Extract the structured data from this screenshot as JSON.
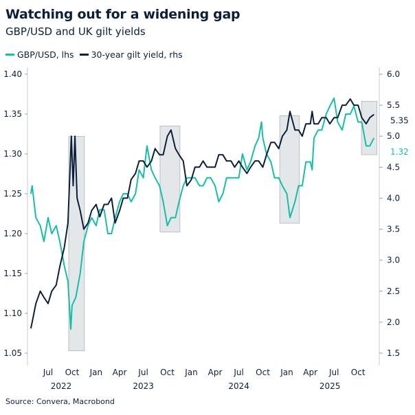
{
  "title": "Watching out for a widening gap",
  "subtitle": "GBP/USD and UK gilt yields",
  "source": "Source: Convera, Macrobond",
  "chart_data": {
    "type": "line",
    "title": "Watching out for a widening gap",
    "subtitle": "GBP/USD and UK gilt yields",
    "legend_placement": "top-left",
    "grid": false,
    "x_axis": {
      "range": [
        "2022-04-20",
        "2025-12-12"
      ],
      "tick_labels": [
        {
          "label": "Jul",
          "date": "2022-07-01"
        },
        {
          "label": "Oct",
          "date": "2022-10-01"
        },
        {
          "label": "Jan",
          "date": "2023-01-01"
        },
        {
          "label": "Apr",
          "date": "2023-04-01"
        },
        {
          "label": "Jul",
          "date": "2023-07-01"
        },
        {
          "label": "Oct",
          "date": "2023-10-01"
        },
        {
          "label": "Jan",
          "date": "2024-01-01"
        },
        {
          "label": "Apr",
          "date": "2024-04-01"
        },
        {
          "label": "Jul",
          "date": "2024-07-01"
        },
        {
          "label": "Oct",
          "date": "2024-10-01"
        },
        {
          "label": "Jan",
          "date": "2025-01-01"
        },
        {
          "label": "Apr",
          "date": "2025-04-01"
        },
        {
          "label": "Jul",
          "date": "2025-07-01"
        },
        {
          "label": "Oct",
          "date": "2025-10-01"
        }
      ],
      "year_labels": [
        {
          "label": "2022",
          "date": "2022-08-20"
        },
        {
          "label": "2023",
          "date": "2023-07-01"
        },
        {
          "label": "2024",
          "date": "2024-07-01"
        },
        {
          "label": "2025",
          "date": "2025-06-15"
        }
      ]
    },
    "y_left": {
      "range": [
        1.05,
        1.4
      ],
      "ticks": [
        "1.05",
        "1.10",
        "1.15",
        "1.20",
        "1.25",
        "1.30",
        "1.35",
        "1.40"
      ]
    },
    "y_right": {
      "range": [
        1.5,
        6.0
      ],
      "ticks": [
        "1.5",
        "2.0",
        "2.5",
        "3.0",
        "3.5",
        "4.0",
        "4.5",
        "5.0",
        "5.5",
        "6.0"
      ]
    },
    "series": [
      {
        "name": "GBP/USD, lhs",
        "axis": "left",
        "color": "#13bfa6",
        "end_label": "1.32",
        "points": [
          [
            "2022-04-26",
            1.25
          ],
          [
            "2022-05-01",
            1.26
          ],
          [
            "2022-05-15",
            1.22
          ],
          [
            "2022-06-01",
            1.21
          ],
          [
            "2022-06-15",
            1.19
          ],
          [
            "2022-07-01",
            1.22
          ],
          [
            "2022-07-15",
            1.2
          ],
          [
            "2022-08-01",
            1.21
          ],
          [
            "2022-08-15",
            1.19
          ],
          [
            "2022-09-01",
            1.16
          ],
          [
            "2022-09-15",
            1.14
          ],
          [
            "2022-09-26",
            1.08
          ],
          [
            "2022-10-01",
            1.11
          ],
          [
            "2022-10-15",
            1.12
          ],
          [
            "2022-11-01",
            1.15
          ],
          [
            "2022-11-15",
            1.19
          ],
          [
            "2022-12-01",
            1.21
          ],
          [
            "2022-12-15",
            1.22
          ],
          [
            "2023-01-01",
            1.21
          ],
          [
            "2023-01-15",
            1.23
          ],
          [
            "2023-02-01",
            1.23
          ],
          [
            "2023-02-15",
            1.2
          ],
          [
            "2023-03-01",
            1.2
          ],
          [
            "2023-03-15",
            1.22
          ],
          [
            "2023-04-01",
            1.24
          ],
          [
            "2023-04-15",
            1.25
          ],
          [
            "2023-05-01",
            1.25
          ],
          [
            "2023-05-15",
            1.24
          ],
          [
            "2023-06-01",
            1.25
          ],
          [
            "2023-06-15",
            1.28
          ],
          [
            "2023-07-01",
            1.27
          ],
          [
            "2023-07-15",
            1.31
          ],
          [
            "2023-08-01",
            1.28
          ],
          [
            "2023-08-15",
            1.27
          ],
          [
            "2023-09-01",
            1.26
          ],
          [
            "2023-09-15",
            1.24
          ],
          [
            "2023-10-01",
            1.21
          ],
          [
            "2023-10-15",
            1.22
          ],
          [
            "2023-11-01",
            1.22
          ],
          [
            "2023-11-15",
            1.24
          ],
          [
            "2023-12-01",
            1.26
          ],
          [
            "2023-12-15",
            1.27
          ],
          [
            "2024-01-01",
            1.27
          ],
          [
            "2024-01-15",
            1.27
          ],
          [
            "2024-02-01",
            1.26
          ],
          [
            "2024-02-15",
            1.26
          ],
          [
            "2024-03-01",
            1.27
          ],
          [
            "2024-03-15",
            1.27
          ],
          [
            "2024-04-01",
            1.26
          ],
          [
            "2024-04-15",
            1.24
          ],
          [
            "2024-05-01",
            1.25
          ],
          [
            "2024-05-15",
            1.27
          ],
          [
            "2024-06-01",
            1.27
          ],
          [
            "2024-06-15",
            1.27
          ],
          [
            "2024-07-01",
            1.27
          ],
          [
            "2024-07-15",
            1.3
          ],
          [
            "2024-08-01",
            1.28
          ],
          [
            "2024-08-15",
            1.29
          ],
          [
            "2024-09-01",
            1.31
          ],
          [
            "2024-09-15",
            1.32
          ],
          [
            "2024-09-26",
            1.34
          ],
          [
            "2024-10-01",
            1.32
          ],
          [
            "2024-10-15",
            1.3
          ],
          [
            "2024-11-01",
            1.29
          ],
          [
            "2024-11-15",
            1.27
          ],
          [
            "2024-12-01",
            1.27
          ],
          [
            "2024-12-15",
            1.26
          ],
          [
            "2025-01-01",
            1.25
          ],
          [
            "2025-01-13",
            1.22
          ],
          [
            "2025-02-01",
            1.24
          ],
          [
            "2025-02-15",
            1.26
          ],
          [
            "2025-03-01",
            1.26
          ],
          [
            "2025-03-15",
            1.29
          ],
          [
            "2025-04-01",
            1.29
          ],
          [
            "2025-04-08",
            1.28
          ],
          [
            "2025-04-15",
            1.32
          ],
          [
            "2025-05-01",
            1.33
          ],
          [
            "2025-05-15",
            1.33
          ],
          [
            "2025-06-01",
            1.35
          ],
          [
            "2025-06-15",
            1.36
          ],
          [
            "2025-07-01",
            1.37
          ],
          [
            "2025-07-15",
            1.34
          ],
          [
            "2025-08-01",
            1.33
          ],
          [
            "2025-08-15",
            1.35
          ],
          [
            "2025-09-01",
            1.35
          ],
          [
            "2025-09-15",
            1.36
          ],
          [
            "2025-10-01",
            1.34
          ],
          [
            "2025-10-15",
            1.34
          ],
          [
            "2025-11-01",
            1.31
          ],
          [
            "2025-11-15",
            1.31
          ],
          [
            "2025-12-01",
            1.32
          ]
        ]
      },
      {
        "name": "30-year gilt yield, rhs",
        "axis": "right",
        "color": "#0b1f3a",
        "end_label": "5.35",
        "points": [
          [
            "2022-04-26",
            1.9
          ],
          [
            "2022-05-01",
            2.0
          ],
          [
            "2022-05-15",
            2.3
          ],
          [
            "2022-06-01",
            2.5
          ],
          [
            "2022-06-15",
            2.4
          ],
          [
            "2022-07-01",
            2.3
          ],
          [
            "2022-07-15",
            2.5
          ],
          [
            "2022-08-01",
            2.6
          ],
          [
            "2022-08-15",
            2.9
          ],
          [
            "2022-09-01",
            3.2
          ],
          [
            "2022-09-15",
            3.6
          ],
          [
            "2022-09-28",
            5.0
          ],
          [
            "2022-10-05",
            4.2
          ],
          [
            "2022-10-12",
            5.0
          ],
          [
            "2022-10-20",
            4.0
          ],
          [
            "2022-11-01",
            3.8
          ],
          [
            "2022-11-15",
            3.5
          ],
          [
            "2022-12-01",
            3.6
          ],
          [
            "2022-12-15",
            3.8
          ],
          [
            "2023-01-01",
            3.9
          ],
          [
            "2023-01-15",
            3.7
          ],
          [
            "2023-02-01",
            3.9
          ],
          [
            "2023-02-15",
            3.9
          ],
          [
            "2023-03-01",
            4.0
          ],
          [
            "2023-03-15",
            3.6
          ],
          [
            "2023-04-01",
            3.8
          ],
          [
            "2023-04-15",
            4.0
          ],
          [
            "2023-05-01",
            4.0
          ],
          [
            "2023-05-15",
            4.3
          ],
          [
            "2023-06-01",
            4.4
          ],
          [
            "2023-06-15",
            4.6
          ],
          [
            "2023-07-01",
            4.6
          ],
          [
            "2023-07-15",
            4.5
          ],
          [
            "2023-08-01",
            4.6
          ],
          [
            "2023-08-15",
            4.8
          ],
          [
            "2023-09-01",
            4.7
          ],
          [
            "2023-09-15",
            4.7
          ],
          [
            "2023-10-01",
            5.0
          ],
          [
            "2023-10-15",
            5.1
          ],
          [
            "2023-11-01",
            4.8
          ],
          [
            "2023-11-15",
            4.7
          ],
          [
            "2023-12-01",
            4.6
          ],
          [
            "2023-12-15",
            4.2
          ],
          [
            "2024-01-01",
            4.3
          ],
          [
            "2024-01-15",
            4.5
          ],
          [
            "2024-02-01",
            4.5
          ],
          [
            "2024-02-15",
            4.6
          ],
          [
            "2024-03-01",
            4.5
          ],
          [
            "2024-03-15",
            4.5
          ],
          [
            "2024-04-01",
            4.5
          ],
          [
            "2024-04-15",
            4.7
          ],
          [
            "2024-05-01",
            4.7
          ],
          [
            "2024-05-15",
            4.6
          ],
          [
            "2024-06-01",
            4.6
          ],
          [
            "2024-06-15",
            4.5
          ],
          [
            "2024-07-01",
            4.6
          ],
          [
            "2024-07-15",
            4.5
          ],
          [
            "2024-08-01",
            4.4
          ],
          [
            "2024-08-15",
            4.5
          ],
          [
            "2024-09-01",
            4.6
          ],
          [
            "2024-09-15",
            4.6
          ],
          [
            "2024-10-01",
            4.5
          ],
          [
            "2024-10-15",
            4.7
          ],
          [
            "2024-11-01",
            4.9
          ],
          [
            "2024-11-15",
            4.9
          ],
          [
            "2024-12-01",
            4.8
          ],
          [
            "2024-12-15",
            5.0
          ],
          [
            "2025-01-01",
            5.1
          ],
          [
            "2025-01-13",
            5.4
          ],
          [
            "2025-02-01",
            5.1
          ],
          [
            "2025-02-15",
            5.1
          ],
          [
            "2025-03-01",
            5.0
          ],
          [
            "2025-03-15",
            5.2
          ],
          [
            "2025-04-01",
            5.2
          ],
          [
            "2025-04-08",
            5.4
          ],
          [
            "2025-04-15",
            5.2
          ],
          [
            "2025-05-01",
            5.2
          ],
          [
            "2025-05-15",
            5.3
          ],
          [
            "2025-06-01",
            5.3
          ],
          [
            "2025-06-15",
            5.2
          ],
          [
            "2025-07-01",
            5.3
          ],
          [
            "2025-07-15",
            5.3
          ],
          [
            "2025-08-01",
            5.5
          ],
          [
            "2025-08-15",
            5.5
          ],
          [
            "2025-09-01",
            5.6
          ],
          [
            "2025-09-15",
            5.5
          ],
          [
            "2025-10-01",
            5.5
          ],
          [
            "2025-10-15",
            5.3
          ],
          [
            "2025-11-01",
            5.2
          ],
          [
            "2025-11-15",
            5.3
          ],
          [
            "2025-12-01",
            5.35
          ]
        ]
      }
    ],
    "highlight_periods": [
      {
        "start": "2022-09-18",
        "end": "2022-11-17",
        "lhs_range": [
          1.053,
          1.322
        ]
      },
      {
        "start": "2023-09-03",
        "end": "2023-11-18",
        "lhs_range": [
          1.202,
          1.335
        ]
      },
      {
        "start": "2024-12-05",
        "end": "2025-02-18",
        "lhs_range": [
          1.213,
          1.348
        ]
      },
      {
        "start": "2025-10-14",
        "end": "2025-12-12",
        "lhs_range": [
          1.299,
          1.366
        ]
      }
    ],
    "highlight_color": "#e4e7ea"
  }
}
